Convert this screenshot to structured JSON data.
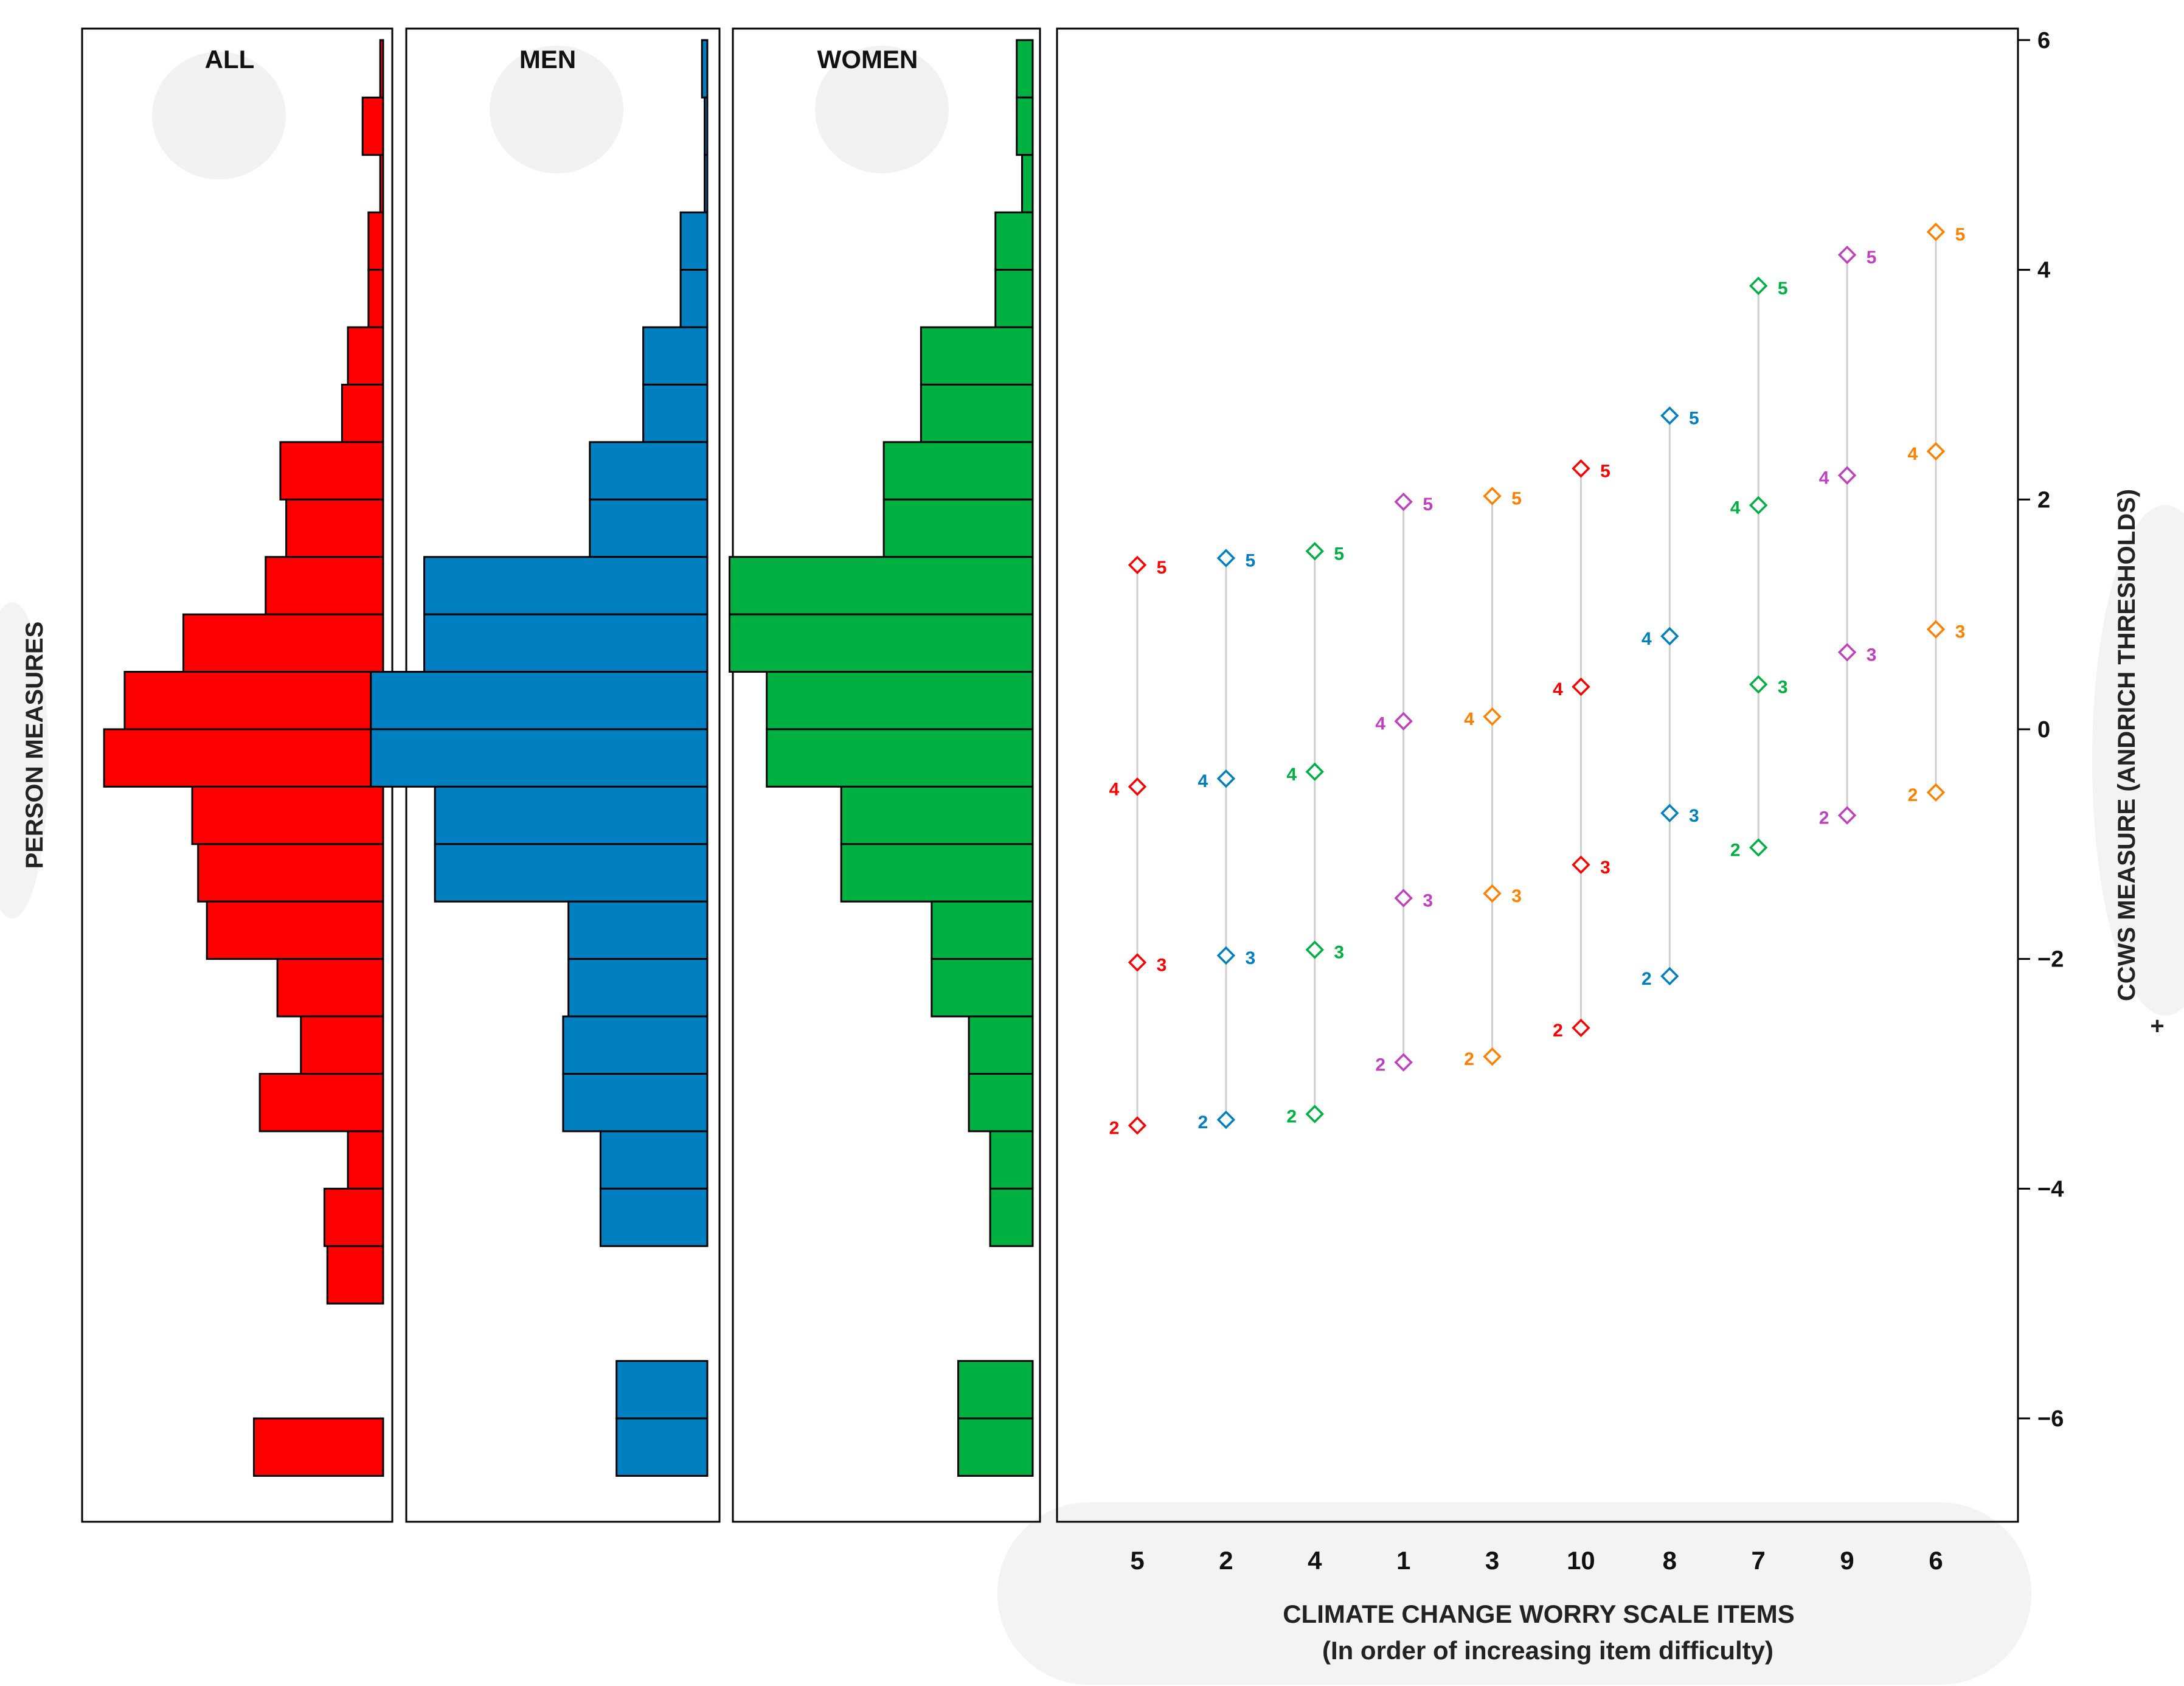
{
  "chart_data": {
    "type": "wright-map",
    "y_axis": {
      "title": "CCWS MEASURE (ANDRICH THRESHOLDS)",
      "title_suffix": "+",
      "ylim": [
        -6.9,
        6.1
      ],
      "ticks": [
        6,
        4,
        2,
        0,
        -2,
        -4,
        -6
      ],
      "tick_labels": [
        "6",
        "4",
        "2",
        "0",
        "−2",
        "−4",
        "−6"
      ]
    },
    "left_axis_title": "PERSON MEASURES",
    "bins": {
      "width": 0.5,
      "lower_edges": [
        5.5,
        5.0,
        4.5,
        4.0,
        3.5,
        3.0,
        2.5,
        2.0,
        1.5,
        1.0,
        0.5,
        0.0,
        -0.5,
        -1.0,
        -1.5,
        -2.0,
        -2.5,
        -3.0,
        -3.5,
        -4.0,
        -4.5,
        -5.0,
        -5.5,
        -6.0,
        -6.5
      ]
    },
    "histograms": [
      {
        "name": "ALL",
        "color": "#ff0000",
        "xmax": 100,
        "values": [
          1,
          7,
          1,
          5,
          5,
          12,
          14,
          35,
          33,
          40,
          68,
          88,
          95,
          65,
          63,
          60,
          36,
          28,
          42,
          12,
          20,
          19,
          0,
          0,
          44
        ]
      },
      {
        "name": "MEN",
        "color": "#0080c0",
        "xmax": 55,
        "values": [
          1,
          0.5,
          0.5,
          5,
          5,
          12,
          12,
          22,
          22,
          53,
          53,
          63,
          63,
          51,
          51,
          26,
          26,
          27,
          27,
          20,
          20,
          0,
          0,
          17,
          17
        ]
      },
      {
        "name": "WOMEN",
        "color": "#00b040",
        "xmax": 55,
        "values": [
          3,
          3,
          2,
          7,
          7,
          21,
          21,
          28,
          28,
          57,
          57,
          50,
          50,
          36,
          36,
          19,
          19,
          12,
          12,
          8,
          8,
          0,
          0,
          14,
          14
        ]
      }
    ],
    "items": {
      "xlabel": "CLIMATE CHANGE WORRY SCALE ITEMS",
      "xlabel_sub": "(In order of increasing item difficulty)",
      "order": [
        "5",
        "2",
        "4",
        "1",
        "3",
        "10",
        "8",
        "7",
        "9",
        "6"
      ],
      "colors": [
        "#ff0000",
        "#0080c0",
        "#00b040",
        "#c040c0",
        "#ff8000",
        "#ff0000",
        "#0080c0",
        "#00b040",
        "#c040c0",
        "#ff8000"
      ],
      "threshold_labels": [
        "2",
        "3",
        "4",
        "5"
      ],
      "thresholds": [
        [
          -3.45,
          -2.03,
          -0.5,
          1.43
        ],
        [
          -3.4,
          -1.97,
          -0.43,
          1.49
        ],
        [
          -3.35,
          -1.92,
          -0.37,
          1.55
        ],
        [
          -2.9,
          -1.47,
          0.07,
          1.98
        ],
        [
          -2.85,
          -1.43,
          0.11,
          2.03
        ],
        [
          -2.6,
          -1.18,
          0.37,
          2.27
        ],
        [
          -2.15,
          -0.73,
          0.81,
          2.73
        ],
        [
          -1.03,
          0.39,
          1.95,
          3.86
        ],
        [
          -0.75,
          0.67,
          2.21,
          4.13
        ],
        [
          -0.55,
          0.87,
          2.42,
          4.33
        ]
      ]
    }
  }
}
